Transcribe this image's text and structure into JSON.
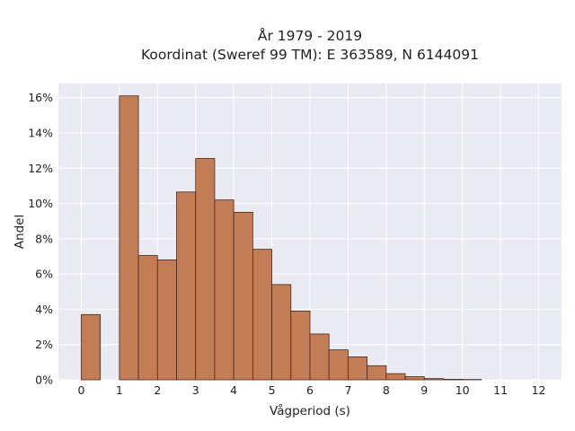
{
  "chart_data": {
    "type": "bar",
    "title": "År 1979 - 2019",
    "subtitle": "Koordinat (Sweref 99 TM): E 363589, N 6144091",
    "xlabel": "Vågperiod (s)",
    "ylabel": "Andel",
    "bin_width": 0.5,
    "bins": [
      {
        "x0": 0.0,
        "value": 3.7
      },
      {
        "x0": 0.5,
        "value": 0
      },
      {
        "x0": 1.0,
        "value": 16.1
      },
      {
        "x0": 1.5,
        "value": 7.05
      },
      {
        "x0": 2.0,
        "value": 6.8
      },
      {
        "x0": 2.5,
        "value": 10.65
      },
      {
        "x0": 3.0,
        "value": 12.55
      },
      {
        "x0": 3.5,
        "value": 10.2
      },
      {
        "x0": 4.0,
        "value": 9.5
      },
      {
        "x0": 4.5,
        "value": 7.4
      },
      {
        "x0": 5.0,
        "value": 5.4
      },
      {
        "x0": 5.5,
        "value": 3.9
      },
      {
        "x0": 6.0,
        "value": 2.6
      },
      {
        "x0": 6.5,
        "value": 1.7
      },
      {
        "x0": 7.0,
        "value": 1.3
      },
      {
        "x0": 7.5,
        "value": 0.8
      },
      {
        "x0": 8.0,
        "value": 0.35
      },
      {
        "x0": 8.5,
        "value": 0.18
      },
      {
        "x0": 9.0,
        "value": 0.07
      },
      {
        "x0": 9.5,
        "value": 0.03
      },
      {
        "x0": 10.0,
        "value": 0.02
      }
    ],
    "xticks": [
      0,
      1,
      2,
      3,
      4,
      5,
      6,
      7,
      8,
      9,
      10,
      11,
      12
    ],
    "yticks": [
      0,
      2,
      4,
      6,
      8,
      10,
      12,
      14,
      16
    ],
    "ytick_suffix": "%",
    "xlim": [
      -0.6,
      12.6
    ],
    "ylim": [
      0,
      16.8
    ],
    "grid": true,
    "colors": {
      "bar_fill": "#c27c56",
      "bar_edge": "#4a2a1c",
      "plot_bg": "#eaeaf2",
      "grid": "#ffffff"
    }
  }
}
